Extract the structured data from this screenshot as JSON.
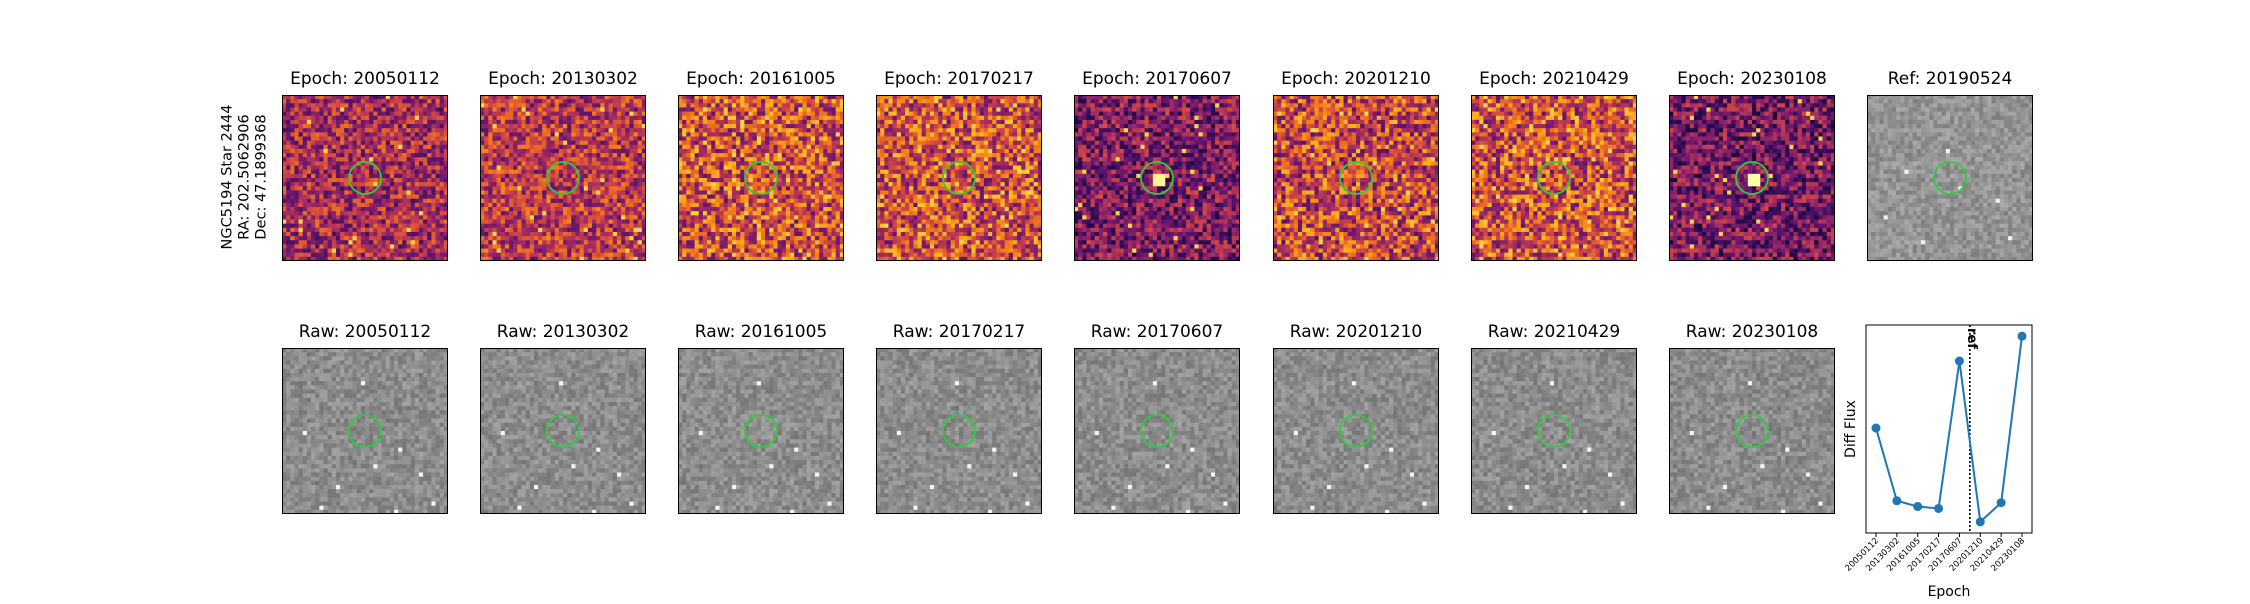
{
  "row_label": {
    "line1": "NGC5194 Star 2444",
    "line2": "RA: 202.5062906",
    "line3": "Dec: 47.1899368"
  },
  "diff_panels": [
    {
      "title": "Epoch: 20050112",
      "cmap": "magma",
      "level": 0.45
    },
    {
      "title": "Epoch: 20130302",
      "cmap": "magma",
      "level": 0.5
    },
    {
      "title": "Epoch: 20161005",
      "cmap": "magma",
      "level": 0.58
    },
    {
      "title": "Epoch: 20170217",
      "cmap": "magma",
      "level": 0.58
    },
    {
      "title": "Epoch: 20170607",
      "cmap": "magma",
      "level": 0.35
    },
    {
      "title": "Epoch: 20201210",
      "cmap": "magma",
      "level": 0.55
    },
    {
      "title": "Epoch: 20210429",
      "cmap": "magma",
      "level": 0.58
    },
    {
      "title": "Epoch: 20230108",
      "cmap": "magma",
      "level": 0.33
    }
  ],
  "ref_panel": {
    "title": "Ref: 20190524",
    "cmap": "gray"
  },
  "raw_panels": [
    {
      "title": "Raw: 20050112"
    },
    {
      "title": "Raw: 20130302"
    },
    {
      "title": "Raw: 20161005"
    },
    {
      "title": "Raw: 20170217"
    },
    {
      "title": "Raw: 20170607"
    },
    {
      "title": "Raw: 20201210"
    },
    {
      "title": "Raw: 20210429"
    },
    {
      "title": "Raw: 20230108"
    }
  ],
  "colors": {
    "circle": "#2ecc40",
    "line": "#1f77b4",
    "ref_line": "#000000"
  },
  "chart_data": {
    "type": "line",
    "xlabel": "Epoch",
    "ylabel": "Diff Flux",
    "categories": [
      "20050112",
      "20130302",
      "20161005",
      "20170217",
      "20170607",
      "20201210",
      "20210429",
      "20230108"
    ],
    "values": [
      0.52,
      0.14,
      0.11,
      0.1,
      0.87,
      0.03,
      0.13,
      1.0
    ],
    "ref_marker": {
      "label": "ref",
      "position_between": [
        4,
        5
      ]
    },
    "yticks": "none",
    "grid": false
  }
}
